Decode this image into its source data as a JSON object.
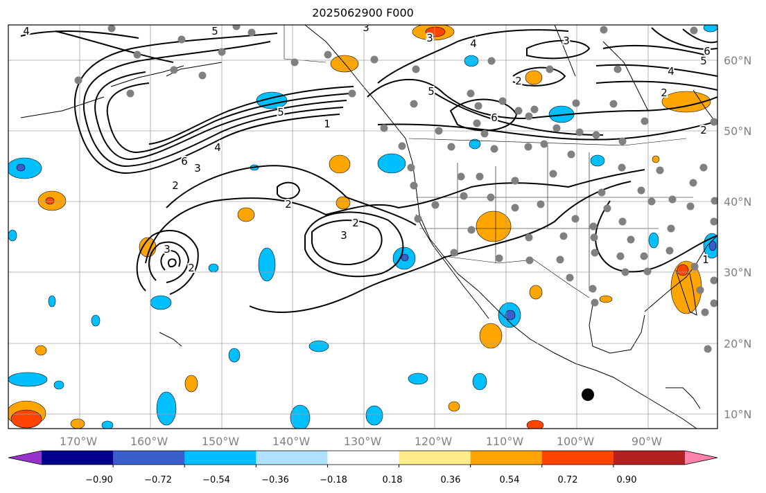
{
  "title": "2025062900 F000",
  "longitude_labels": [
    "170°W",
    "160°W",
    "150°W",
    "140°W",
    "130°W",
    "120°W",
    "110°W",
    "100°W",
    "90°W"
  ],
  "latitude_labels": [
    "60°N",
    "50°N",
    "40°N",
    "30°N",
    "20°N",
    "10°N"
  ],
  "colorbar": {
    "tick_labels": [
      "−0.90",
      "−0.72",
      "−0.54",
      "−0.36",
      "−0.18",
      "0.18",
      "0.36",
      "0.54",
      "0.72",
      "0.90"
    ],
    "colors": [
      "#9932cc",
      "#00008b",
      "#3a5fcd",
      "#00bfff",
      "#b0e2ff",
      "#ffffff",
      "#ffec8b",
      "#ffa500",
      "#ff4500",
      "#b22222",
      "#ff83aa"
    ]
  },
  "contour_labels": [
    "4",
    "5",
    "3",
    "4",
    "3",
    "6",
    "5",
    "4",
    "2",
    "2",
    "5",
    "6",
    "5",
    "1",
    "2",
    "6",
    "4",
    "3",
    "2",
    "2",
    "2",
    "3",
    "3",
    "2",
    "3",
    "1"
  ],
  "colors": {
    "land_line": "#000000",
    "grid": "#a0a0a0",
    "station": "#808080",
    "marker": "#000000"
  }
}
